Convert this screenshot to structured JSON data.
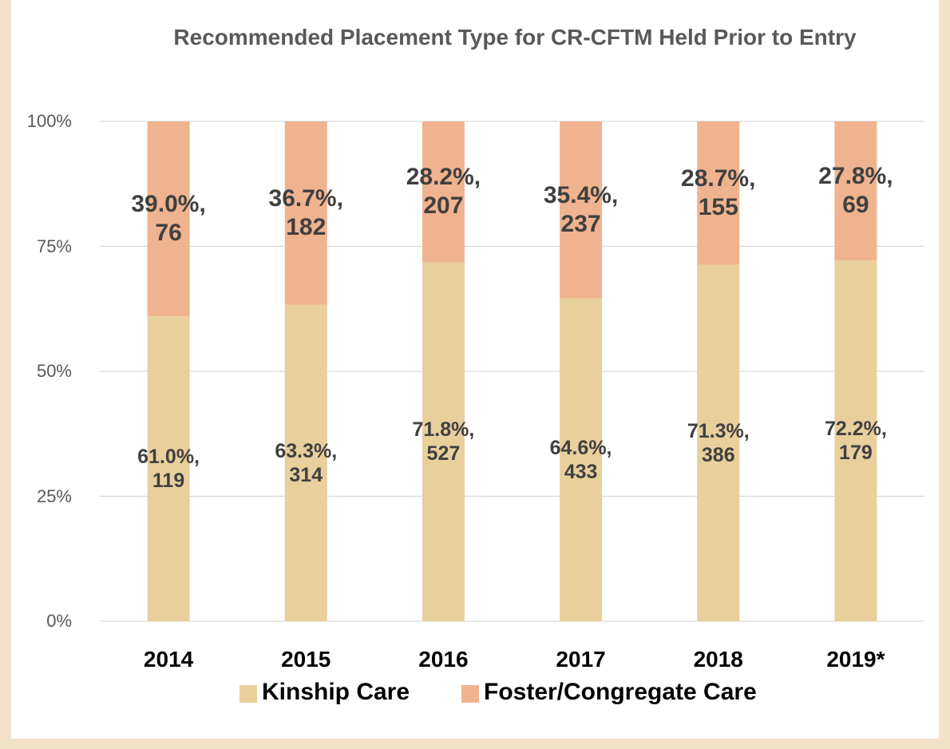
{
  "chart_data": {
    "type": "stacked_bar",
    "title": "Recommended Placement Type for CR-CFTM Held Prior to Entry",
    "categories": [
      "2014",
      "2015",
      "2016",
      "2017",
      "2018",
      "2019*"
    ],
    "series": [
      {
        "name": "Kinship Care",
        "color": "#e9cf9c",
        "values": [
          61.0,
          63.3,
          71.8,
          64.6,
          71.3,
          72.2
        ],
        "value_labels": [
          "61.0%, 119",
          "63.3%, 314",
          "71.8%, 527",
          "64.6%, 433",
          "71.3%, 386",
          "72.2%, 179"
        ]
      },
      {
        "name": "Foster/Congregate Care",
        "color": "#f0b38f",
        "values": [
          39.0,
          36.7,
          28.2,
          35.4,
          28.7,
          27.8
        ],
        "value_labels": [
          "39.0%, 76",
          "36.7%, 182",
          "28.2%, 207",
          "35.4%, 237",
          "28.7%, 155",
          "27.8%, 69"
        ]
      }
    ],
    "ylim": [
      0,
      100
    ],
    "yticks": [
      {
        "value": 0,
        "label": "0%"
      },
      {
        "value": 25,
        "label": "25%"
      },
      {
        "value": 50,
        "label": "50%"
      },
      {
        "value": 75,
        "label": "75%"
      },
      {
        "value": 100,
        "label": "100%"
      }
    ],
    "grid": true,
    "legend": "bottom"
  }
}
